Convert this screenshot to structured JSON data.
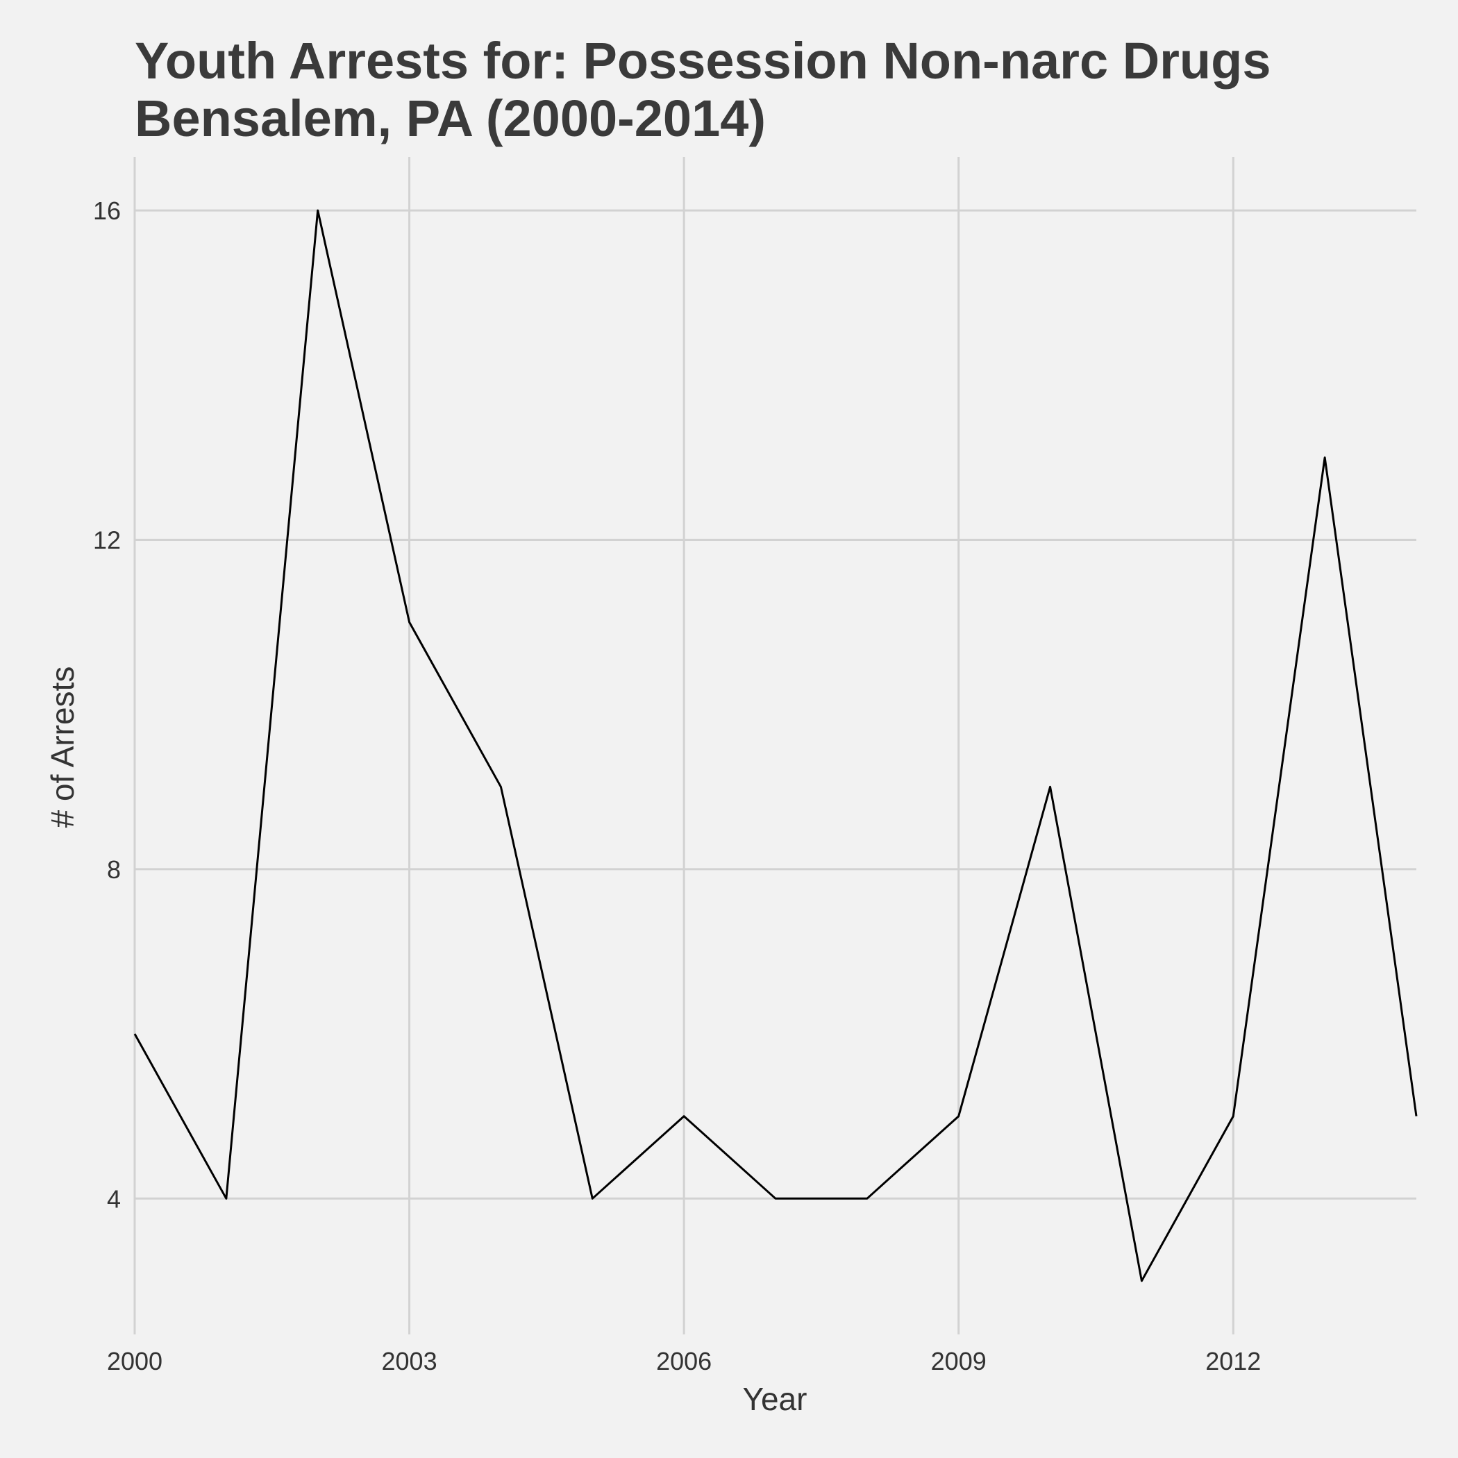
{
  "chart_data": {
    "type": "line",
    "title_lines": [
      "Youth Arrests for: Possession Non-narc Drugs",
      "Bensalem, PA (2000-2014)"
    ],
    "xlabel": "Year",
    "ylabel": "# of Arrests",
    "x": [
      2000,
      2001,
      2002,
      2003,
      2004,
      2005,
      2006,
      2007,
      2008,
      2009,
      2010,
      2011,
      2012,
      2013,
      2014
    ],
    "series": [
      {
        "values": [
          6,
          4,
          16,
          11,
          9,
          4,
          5,
          4,
          4,
          5,
          9,
          3,
          5,
          13,
          5
        ]
      }
    ],
    "x_ticks": [
      2000,
      2003,
      2006,
      2009,
      2012
    ],
    "x_tick_labels": [
      "2000",
      "2003",
      "2006",
      "2009",
      "2012"
    ],
    "y_ticks": [
      4,
      8,
      12,
      16
    ],
    "y_tick_labels": [
      "4",
      "8",
      "12",
      "16"
    ],
    "xlim": [
      2000,
      2014
    ],
    "ylim": [
      2.35,
      16.65
    ],
    "grid": true,
    "legend": "none",
    "colors": {
      "background": "#f2f2f2",
      "grid": "#d2d2d2",
      "line": "#000000",
      "title": "#3a3a3a",
      "text": "#333333"
    }
  }
}
